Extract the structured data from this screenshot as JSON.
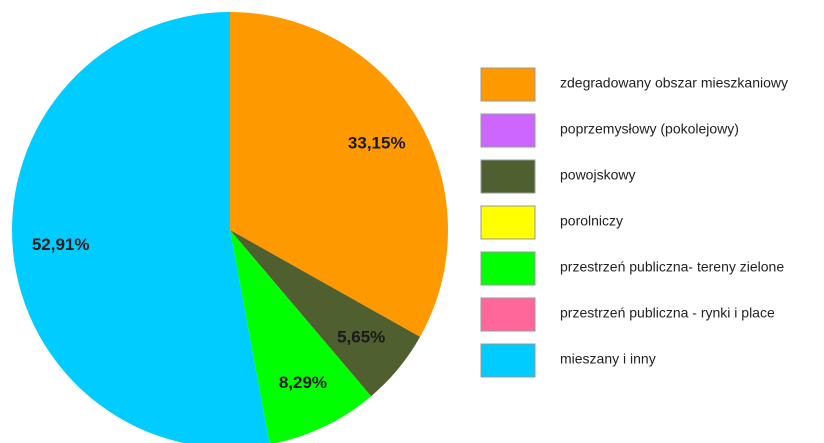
{
  "chart_data": {
    "type": "pie",
    "categories": [
      "zdegradowany obszar mieszkaniowy",
      "poprzemysłowy (pokolejowy)",
      "powojskowy",
      "porolniczy",
      "przestrzeń publiczna- tereny zielone",
      "przestrzeń publiczna - rynki i place",
      "mieszany i inny"
    ],
    "values": [
      33.15,
      0,
      5.65,
      0,
      8.29,
      0,
      52.91
    ],
    "value_labels": [
      "33,15%",
      null,
      "5,65%",
      null,
      "8,29%",
      null,
      "52,91%"
    ],
    "colors": [
      "#ff9900",
      "#cc66ff",
      "#4f5f2f",
      "#ffff00",
      "#00ff00",
      "#ff6699",
      "#00ccff"
    ]
  }
}
